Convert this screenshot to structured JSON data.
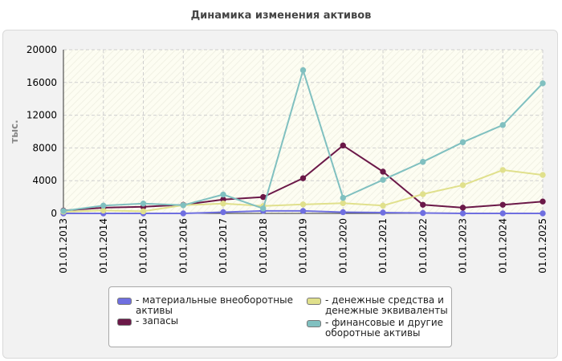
{
  "chart_data": {
    "type": "line",
    "title": "Динамика изменения активов",
    "ylabel": "тыс.",
    "xlabel": "",
    "ylim": [
      0,
      20000
    ],
    "yticks": [
      0,
      4000,
      8000,
      12000,
      16000,
      20000
    ],
    "grid": true,
    "legend_position": "bottom",
    "x": [
      "01.01.2013",
      "01.01.2014",
      "01.01.2015",
      "01.01.2016",
      "01.01.2017",
      "01.01.2018",
      "01.01.2019",
      "01.01.2020",
      "01.01.2021",
      "01.01.2022",
      "01.01.2023",
      "01.01.2024",
      "01.01.2025"
    ],
    "series": [
      {
        "name": "- материальные внеоборотные активы",
        "color": "#6f6fe0",
        "values": [
          0,
          0,
          0,
          0,
          150,
          300,
          300,
          150,
          100,
          50,
          0,
          0,
          0
        ]
      },
      {
        "name": "- запасы",
        "color": "#6b1848",
        "values": [
          350,
          700,
          800,
          1050,
          1700,
          2000,
          4300,
          8300,
          5100,
          1050,
          700,
          1050,
          1450
        ]
      },
      {
        "name": "- денежные средства и денежные эквиваленты",
        "color": "#e0e08c",
        "values": [
          200,
          350,
          250,
          1000,
          1200,
          900,
          1100,
          1250,
          950,
          2350,
          3450,
          5300,
          4700
        ]
      },
      {
        "name": "- финансовые и другие оборотные активы",
        "color": "#80c0c0",
        "values": [
          300,
          950,
          1200,
          1000,
          2300,
          600,
          17500,
          1900,
          4100,
          6300,
          8700,
          10800,
          15900
        ]
      }
    ]
  }
}
